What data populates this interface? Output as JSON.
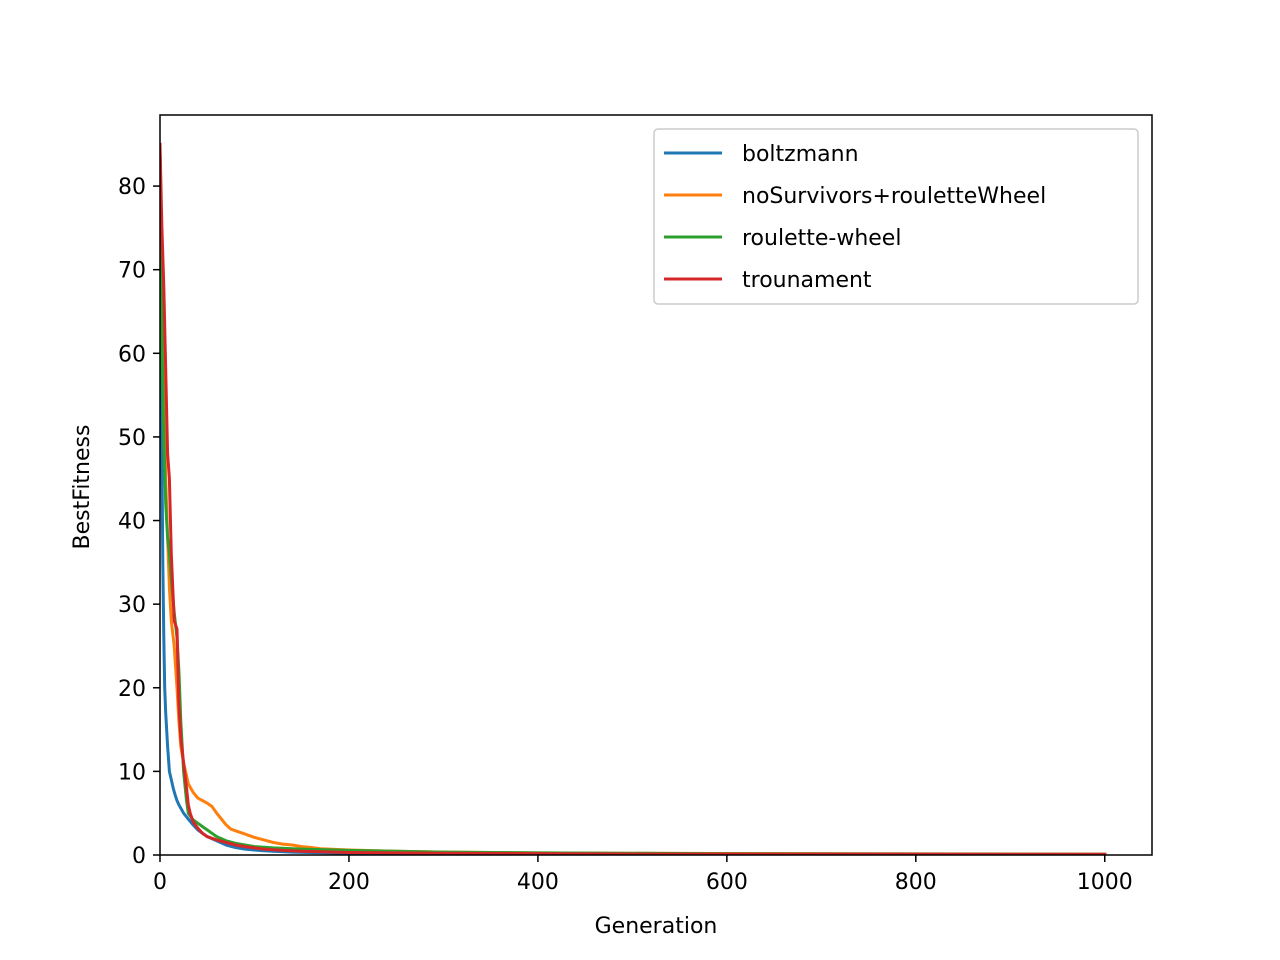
{
  "chart_data": {
    "type": "line",
    "title": "",
    "xlabel": "Generation",
    "ylabel": "BestFitness",
    "xlim": [
      0,
      1050
    ],
    "ylim": [
      0,
      88.5
    ],
    "x_ticks": [
      0,
      200,
      400,
      600,
      800,
      1000
    ],
    "y_ticks": [
      0,
      10,
      20,
      30,
      40,
      50,
      60,
      70,
      80
    ],
    "grid": false,
    "legend_position": "top-right",
    "series": [
      {
        "name": "boltzmann",
        "color": "#1f77b4",
        "x": [
          0,
          1,
          2,
          3,
          4,
          5,
          6,
          8,
          10,
          12,
          14,
          16,
          18,
          20,
          25,
          30,
          35,
          40,
          45,
          50,
          60,
          70,
          80,
          90,
          100,
          110,
          120,
          140,
          200,
          400,
          1000
        ],
        "y": [
          84,
          65,
          48,
          35,
          26,
          20,
          17,
          13,
          10,
          9,
          8,
          7.2,
          6.5,
          6,
          5,
          4.3,
          3.6,
          3.0,
          2.6,
          2.2,
          1.7,
          1.2,
          0.9,
          0.7,
          0.6,
          0.5,
          0.45,
          0.35,
          0.2,
          0.1,
          0.05
        ]
      },
      {
        "name": "noSurvivors+rouletteWheel",
        "color": "#ff7f0e",
        "x": [
          0,
          2,
          4,
          6,
          8,
          10,
          12,
          15,
          18,
          20,
          22,
          25,
          28,
          30,
          35,
          40,
          45,
          50,
          55,
          60,
          65,
          70,
          75,
          80,
          90,
          100,
          110,
          120,
          130,
          140,
          150,
          160,
          170,
          200,
          250,
          300,
          400,
          500,
          700,
          1000
        ],
        "y": [
          84,
          70,
          55,
          45,
          38,
          32,
          28,
          25,
          20,
          16,
          13,
          11,
          9.5,
          8.5,
          7.5,
          6.8,
          6.5,
          6.2,
          5.8,
          5,
          4.3,
          3.6,
          3.1,
          2.9,
          2.5,
          2.1,
          1.8,
          1.5,
          1.3,
          1.2,
          1.0,
          0.9,
          0.75,
          0.6,
          0.45,
          0.35,
          0.25,
          0.2,
          0.15,
          0.1
        ]
      },
      {
        "name": "roulette-wheel",
        "color": "#2ca02c",
        "x": [
          0,
          1,
          2,
          3,
          4,
          6,
          8,
          10,
          12,
          15,
          18,
          20,
          22,
          25,
          28,
          30,
          35,
          40,
          45,
          50,
          55,
          60,
          70,
          80,
          90,
          100,
          120,
          150,
          200,
          250,
          300,
          400,
          600,
          1000
        ],
        "y": [
          84,
          72,
          62,
          56,
          50,
          42,
          38,
          36,
          33,
          29,
          26,
          22,
          16,
          10,
          6.5,
          5,
          4.2,
          3.8,
          3.4,
          3.0,
          2.6,
          2.2,
          1.7,
          1.4,
          1.2,
          1.0,
          0.85,
          0.7,
          0.55,
          0.45,
          0.35,
          0.25,
          0.15,
          0.1
        ]
      },
      {
        "name": "trounament",
        "color": "#d62728",
        "x": [
          0,
          2,
          4,
          6,
          8,
          10,
          12,
          15,
          18,
          20,
          22,
          25,
          28,
          30,
          32,
          35,
          40,
          45,
          50,
          55,
          60,
          70,
          80,
          90,
          100,
          110,
          130,
          150,
          200,
          300,
          500,
          1000
        ],
        "y": [
          85,
          75,
          68,
          58,
          48,
          45,
          36,
          28,
          27,
          18,
          14,
          11,
          8,
          6,
          5,
          4,
          3.2,
          2.6,
          2.2,
          2.0,
          1.8,
          1.5,
          1.2,
          1.0,
          0.85,
          0.7,
          0.55,
          0.45,
          0.3,
          0.2,
          0.12,
          0.08
        ]
      }
    ]
  }
}
